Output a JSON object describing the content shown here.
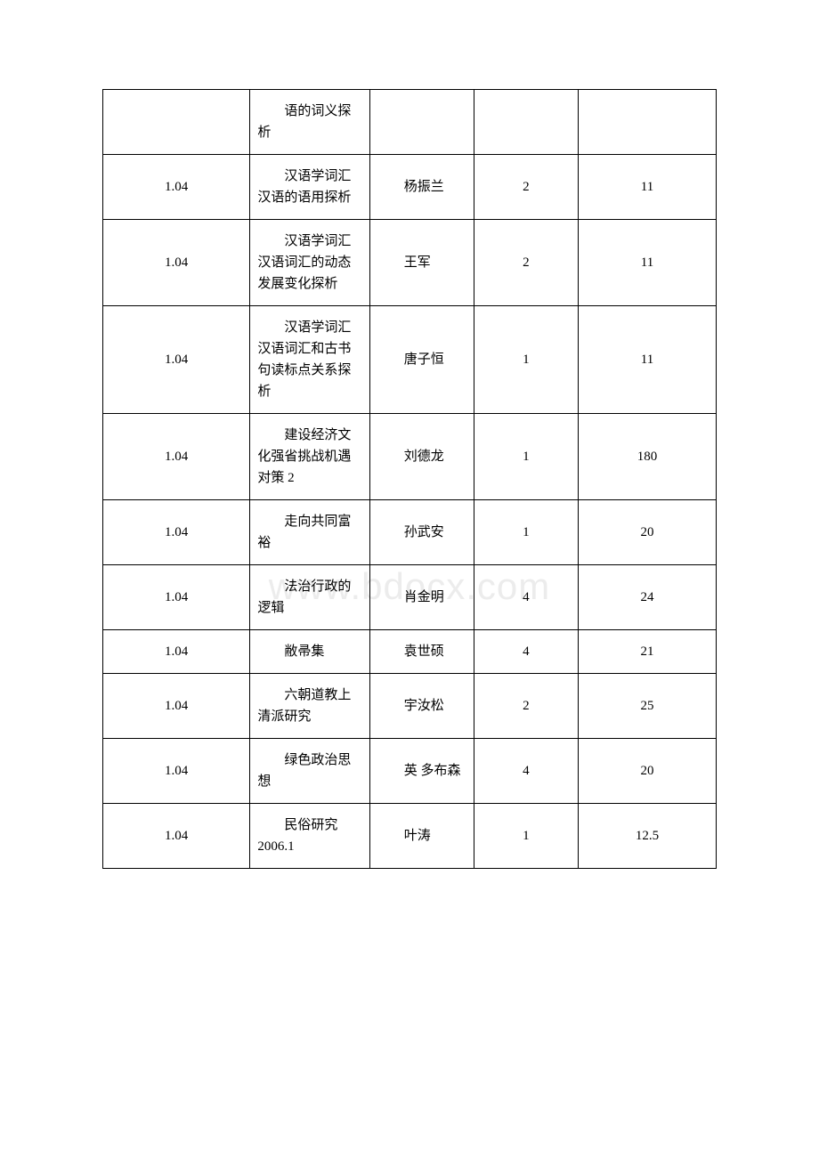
{
  "watermark": "www.bdocx.com",
  "table": {
    "columns": [
      {
        "key": "col1",
        "align": "center",
        "width": "24%"
      },
      {
        "key": "col2",
        "align": "left",
        "width": "19.5%"
      },
      {
        "key": "col3",
        "align": "left",
        "width": "17%"
      },
      {
        "key": "col4",
        "align": "center",
        "width": "17%"
      },
      {
        "key": "col5",
        "align": "center",
        "width": "22.5%"
      }
    ],
    "rows": [
      {
        "c1": "",
        "c2": "语的词义探析",
        "c3": "",
        "c4": "",
        "c5": ""
      },
      {
        "c1": "1.04",
        "c2": "汉语学词汇 汉语的语用探析",
        "c3": "杨振兰",
        "c4": "2",
        "c5": "11"
      },
      {
        "c1": "1.04",
        "c2": "汉语学词汇 汉语词汇的动态发展变化探析",
        "c3": "王军",
        "c4": "2",
        "c5": "11"
      },
      {
        "c1": "1.04",
        "c2": "汉语学词汇 汉语词汇和古书句读标点关系探析",
        "c3": "唐子恒",
        "c4": "1",
        "c5": "11"
      },
      {
        "c1": "1.04",
        "c2": "建设经济文化强省挑战机遇对策 2",
        "c3": "刘德龙",
        "c4": "1",
        "c5": "180"
      },
      {
        "c1": "1.04",
        "c2": "走向共同富裕",
        "c3": "孙武安",
        "c4": "1",
        "c5": "20"
      },
      {
        "c1": "1.04",
        "c2": "法治行政的逻辑",
        "c3": "肖金明",
        "c4": "4",
        "c5": "24"
      },
      {
        "c1": "1.04",
        "c2": "敝帚集",
        "c3": "袁世硕",
        "c4": "4",
        "c5": "21"
      },
      {
        "c1": "1.04",
        "c2": "六朝道教上清派研究",
        "c3": "宇汝松",
        "c4": "2",
        "c5": "25"
      },
      {
        "c1": "1.04",
        "c2": "绿色政治思想",
        "c3": "英 多布森",
        "c4": "4",
        "c5": "20"
      },
      {
        "c1": "1.04",
        "c2": "民俗研究 2006.1",
        "c3": "叶涛",
        "c4": "1",
        "c5": "12.5"
      }
    ],
    "border_color": "#000000",
    "background_color": "#ffffff",
    "font_size": 15,
    "font_family": "SimSun"
  }
}
